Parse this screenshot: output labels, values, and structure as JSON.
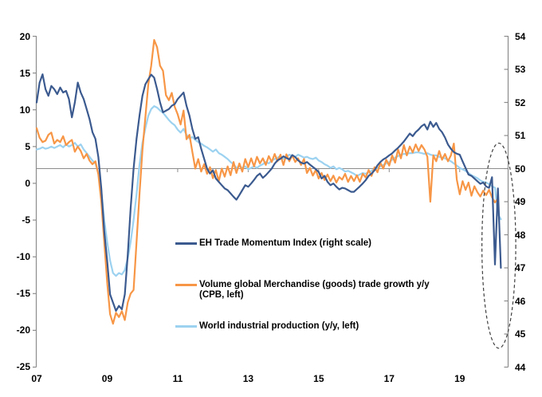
{
  "chart_data": {
    "type": "line",
    "title": "",
    "frequency": "monthly",
    "x_axis": {
      "start_year": 2007,
      "end_year_fraction": 2020.25,
      "tick_labels": [
        "07",
        "09",
        "11",
        "13",
        "15",
        "17",
        "19"
      ],
      "tick_years": [
        2007,
        2009,
        2011,
        2013,
        2015,
        2017,
        2019
      ]
    },
    "left_axis": {
      "min": -25,
      "max": 20,
      "step": 5,
      "baseline": 2,
      "ticks": [
        20,
        15,
        10,
        5,
        0,
        -5,
        -10,
        -15,
        -20,
        -25
      ]
    },
    "right_axis": {
      "min": 44,
      "max": 54,
      "step": 1,
      "baseline": 50,
      "ticks": [
        54,
        53,
        52,
        51,
        50,
        49,
        48,
        47,
        46,
        45,
        44
      ]
    },
    "grid": "none; single horizontal reference line at left=2 / right=50",
    "axis_color": "#8C8C8C",
    "baseline_color": "#8C8C8C",
    "series": [
      {
        "name": "EH Trade Momentum Index (right scale)",
        "axis": "right",
        "color": "#3B5A8F",
        "start": "2007-01",
        "values": [
          52.0,
          52.6,
          52.85,
          52.4,
          52.2,
          52.5,
          52.4,
          52.25,
          52.45,
          52.3,
          52.35,
          52.1,
          51.55,
          52.0,
          52.6,
          52.3,
          52.1,
          51.8,
          51.5,
          51.1,
          50.9,
          50.35,
          49.4,
          48.1,
          47.2,
          46.2,
          45.95,
          45.7,
          45.85,
          45.75,
          46.2,
          47.4,
          48.8,
          50.0,
          50.9,
          51.6,
          52.2,
          52.55,
          52.7,
          52.84,
          52.75,
          52.4,
          52.0,
          51.7,
          51.75,
          51.8,
          51.9,
          51.95,
          52.1,
          52.2,
          52.3,
          51.9,
          51.6,
          51.2,
          50.9,
          50.95,
          50.6,
          50.3,
          50.0,
          49.85,
          49.95,
          49.7,
          49.6,
          49.5,
          49.4,
          49.35,
          49.25,
          49.15,
          49.06,
          49.2,
          49.35,
          49.5,
          49.45,
          49.55,
          49.66,
          49.78,
          49.85,
          49.72,
          49.8,
          49.9,
          50.0,
          50.15,
          50.25,
          50.3,
          50.37,
          50.32,
          50.28,
          50.41,
          50.35,
          50.25,
          50.18,
          50.15,
          50.2,
          50.12,
          50.05,
          49.98,
          49.9,
          49.7,
          49.78,
          49.6,
          49.5,
          49.55,
          49.45,
          49.37,
          49.42,
          49.4,
          49.35,
          49.3,
          49.3,
          49.38,
          49.46,
          49.55,
          49.65,
          49.78,
          49.85,
          49.95,
          50.1,
          50.2,
          50.28,
          50.33,
          50.4,
          50.46,
          50.55,
          50.63,
          50.72,
          50.82,
          50.94,
          51.06,
          50.98,
          51.1,
          51.18,
          51.28,
          51.34,
          51.18,
          51.42,
          51.26,
          51.38,
          51.2,
          51.1,
          50.94,
          50.73,
          50.6,
          50.5,
          50.45,
          50.42,
          50.22,
          50.02,
          49.82,
          49.78,
          49.7,
          49.62,
          49.54,
          49.58,
          49.46,
          49.42,
          49.74,
          47.1,
          49.4,
          47.0
        ]
      },
      {
        "name": "Volume global Merchandise (goods) trade growth y/y (CPB, left)",
        "axis": "left",
        "color": "#F79646",
        "start": "2007-01",
        "values": [
          7.5,
          6.2,
          5.6,
          5.8,
          6.6,
          6.9,
          5.4,
          5.9,
          5.6,
          6.4,
          5.2,
          5.6,
          5.9,
          4.3,
          5.0,
          4.4,
          3.4,
          4.0,
          3.1,
          2.6,
          3.0,
          1.2,
          -2.5,
          -8.0,
          -13.5,
          -17.8,
          -19.1,
          -17.6,
          -18.2,
          -17.4,
          -18.6,
          -16.2,
          -15.0,
          -14.5,
          -8.0,
          -1.5,
          4.5,
          9.0,
          13.5,
          16.0,
          19.5,
          18.5,
          16.0,
          15.3,
          12.0,
          11.3,
          12.3,
          10.4,
          9.4,
          8.0,
          9.9,
          6.0,
          6.6,
          4.3,
          2.0,
          3.3,
          1.6,
          2.6,
          1.3,
          2.2,
          0.7,
          1.8,
          0.3,
          2.0,
          0.9,
          2.3,
          1.1,
          2.9,
          1.4,
          2.7,
          1.6,
          3.3,
          2.2,
          3.4,
          2.3,
          3.6,
          2.7,
          3.4,
          2.5,
          3.7,
          2.9,
          4.0,
          3.0,
          3.9,
          2.5,
          3.95,
          3.0,
          3.8,
          2.9,
          3.4,
          2.5,
          3.3,
          1.4,
          2.1,
          1.05,
          1.8,
          0.65,
          1.4,
          0.45,
          1.2,
          0.3,
          1.05,
          0.1,
          0.85,
          0.5,
          1.3,
          0.2,
          1.0,
          0.3,
          1.1,
          0.2,
          1.3,
          0.8,
          1.8,
          1.0,
          2.2,
          1.5,
          2.8,
          2.0,
          3.2,
          2.4,
          3.8,
          2.8,
          4.6,
          3.4,
          5.2,
          3.8,
          5.0,
          4.2,
          5.3,
          4.4,
          5.2,
          4.6,
          3.6,
          -2.5,
          3.8,
          3.0,
          4.4,
          3.2,
          4.0,
          3.0,
          3.8,
          5.4,
          0.5,
          -1.5,
          0.3,
          -0.9,
          0.1,
          -1.7,
          -0.4,
          -1.2,
          -1.8,
          -1.0,
          -1.6,
          -0.9,
          -1.9,
          -2.6,
          -2.1
        ]
      },
      {
        "name": "World industrial production (y/y, left)",
        "axis": "left",
        "color": "#9CD2F0",
        "start": "2007-01",
        "values": [
          4.6,
          4.7,
          4.9,
          4.7,
          4.8,
          5.0,
          4.8,
          5.0,
          5.2,
          4.9,
          5.3,
          5.0,
          5.2,
          5.5,
          5.0,
          5.3,
          4.6,
          4.1,
          3.6,
          3.1,
          2.7,
          1.4,
          -1.0,
          -5.0,
          -8.0,
          -10.5,
          -12.2,
          -12.6,
          -12.2,
          -12.4,
          -11.8,
          -10.2,
          -8.0,
          -5.0,
          -1.5,
          2.5,
          5.5,
          7.5,
          9.2,
          10.1,
          10.5,
          10.3,
          9.9,
          9.6,
          9.1,
          8.6,
          8.2,
          7.9,
          7.3,
          6.9,
          7.4,
          6.6,
          6.1,
          6.3,
          5.9,
          5.6,
          5.4,
          5.1,
          4.9,
          4.6,
          4.3,
          4.6,
          4.1,
          3.9,
          3.6,
          3.3,
          2.9,
          2.6,
          2.1,
          2.3,
          2.1,
          2.3,
          1.9,
          2.1,
          2.3,
          2.1,
          2.4,
          2.6,
          2.9,
          2.7,
          3.1,
          3.3,
          3.5,
          3.7,
          3.3,
          3.6,
          3.9,
          3.7,
          3.6,
          3.9,
          3.7,
          3.5,
          3.6,
          3.4,
          3.3,
          3.5,
          3.1,
          2.9,
          2.6,
          2.4,
          2.1,
          2.3,
          1.9,
          2.1,
          1.9,
          1.6,
          1.7,
          1.5,
          1.3,
          1.0,
          1.2,
          1.4,
          1.3,
          1.5,
          1.7,
          1.9,
          2.1,
          2.3,
          2.5,
          2.7,
          2.9,
          3.2,
          3.5,
          3.7,
          3.9,
          4.0,
          4.0,
          4.1,
          4.1,
          4.2,
          4.2,
          4.1,
          4.0,
          4.1,
          3.9,
          3.8,
          3.8,
          3.6,
          3.5,
          3.4,
          3.2,
          3.0,
          2.7,
          2.4,
          2.1,
          1.9,
          1.7,
          1.4,
          1.1,
          0.9,
          0.7,
          0.4,
          0.2,
          0.1,
          -0.1,
          -0.4,
          -0.6,
          -4.2,
          -4.9
        ]
      }
    ],
    "annotation": {
      "shape": "dashed-ellipse",
      "color": "#404040",
      "center_year": 2020.11,
      "center_value_right_scale": 47.67,
      "radius_years": 0.48,
      "radius_right_scale": 3.1
    },
    "legend_position": "inside lower-center-left"
  }
}
